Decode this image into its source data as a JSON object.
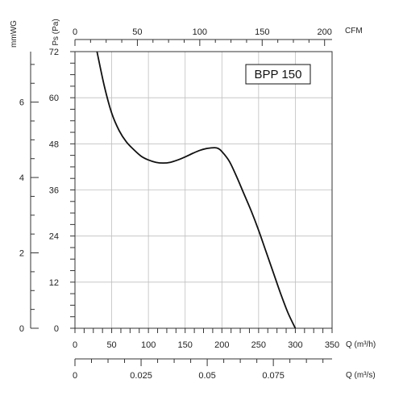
{
  "chart_data": {
    "type": "line",
    "model_label": "BPP 150",
    "y_axis_pa": {
      "title": "Ps (Pa)",
      "ticks": [
        0,
        12,
        24,
        36,
        48,
        60,
        72
      ],
      "range": [
        0,
        72
      ]
    },
    "y_axis_mmwg": {
      "title": "mmWG",
      "ticks": [
        0,
        2,
        4,
        6
      ],
      "range": [
        0,
        7.34
      ]
    },
    "x_axis_m3h": {
      "title": "Q (m³/h)",
      "ticks": [
        0,
        50,
        100,
        150,
        200,
        250,
        300,
        350
      ],
      "range": [
        0,
        350
      ]
    },
    "x_axis_cfm": {
      "title": "CFM",
      "ticks": [
        0,
        50,
        100,
        150,
        200
      ],
      "range": [
        0,
        206
      ]
    },
    "x_axis_m3s": {
      "title": "Q (m³/s)",
      "ticks": [
        "0",
        "0.025",
        "0.05",
        "0.075"
      ],
      "range": [
        0,
        0.0972
      ]
    },
    "grid": true,
    "series": [
      {
        "x": [
          30,
          40,
          50,
          60,
          70,
          80,
          90,
          100,
          110,
          120,
          130,
          140,
          150,
          160,
          170,
          180,
          190,
          195,
          200,
          210,
          220,
          230,
          240,
          250,
          260,
          270,
          280,
          290,
          300
        ],
        "y": [
          72,
          63,
          56,
          51.5,
          48.5,
          46.5,
          44.8,
          43.8,
          43.2,
          43.0,
          43.2,
          43.8,
          44.6,
          45.5,
          46.3,
          46.8,
          47.0,
          46.8,
          46.0,
          43.5,
          39.5,
          35.0,
          30.5,
          25.5,
          20.0,
          14.5,
          9.0,
          4.0,
          0
        ]
      }
    ]
  }
}
